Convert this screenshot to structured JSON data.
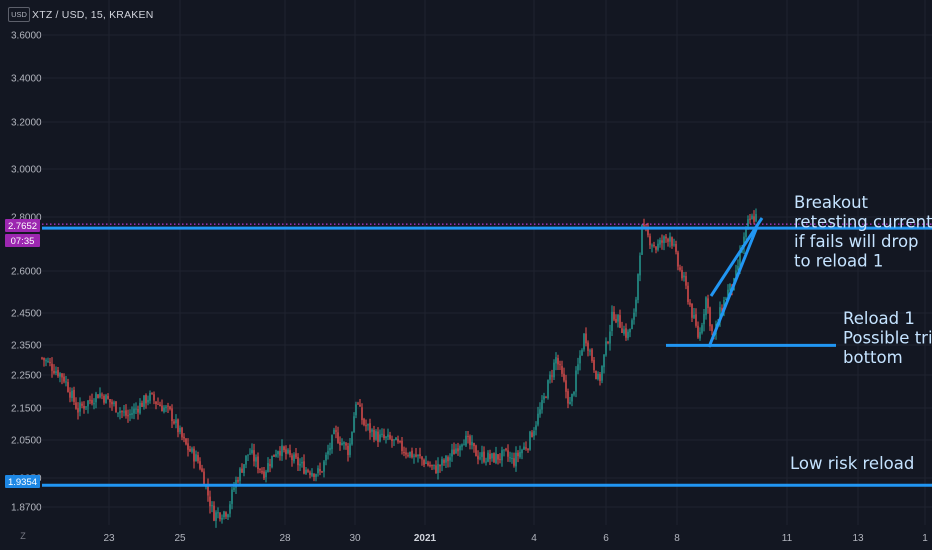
{
  "header": {
    "usd_label": "USD",
    "symbol_line": "XTZ / USD, 15, KRAKEN",
    "z_label": "Z"
  },
  "colors": {
    "background": "#131722",
    "grid": "#1f2330",
    "candle_up": "#26a69a",
    "candle_down": "#ef5350",
    "drawing_lines": "#2196f3",
    "price_badge": "#9c27b0",
    "level_badge": "#1e88e5",
    "annotation_text": "#c5e3ff"
  },
  "chart_data": {
    "type": "candlestick",
    "symbol": "XTZ / USD",
    "interval": "15",
    "exchange": "KRAKEN",
    "price_axis": {
      "ticks": [
        "1.8700",
        "1.9350",
        "2.0500",
        "2.1500",
        "2.2500",
        "2.3500",
        "2.4500",
        "2.6000",
        "2.8000",
        "3.0000",
        "3.2000",
        "3.4000",
        "3.6000"
      ],
      "scale": "log"
    },
    "time_axis": {
      "ticks": [
        {
          "label": "23",
          "bold": false
        },
        {
          "label": "25",
          "bold": false
        },
        {
          "label": "28",
          "bold": false
        },
        {
          "label": "30",
          "bold": false
        },
        {
          "label": "2021",
          "bold": true
        },
        {
          "label": "4",
          "bold": false
        },
        {
          "label": "6",
          "bold": false
        },
        {
          "label": "8",
          "bold": false
        },
        {
          "label": "11",
          "bold": false
        },
        {
          "label": "13",
          "bold": false
        },
        {
          "label": "1",
          "bold": false
        }
      ]
    },
    "current_price": {
      "value": "2.7652",
      "countdown": "07:35"
    },
    "levels": [
      {
        "name": "resistance",
        "value": 2.7652
      },
      {
        "name": "low-risk-reload",
        "value": 1.9354,
        "label": "1.9354"
      },
      {
        "name": "reload-1",
        "value": 2.34
      }
    ],
    "price_path": [
      [
        0,
        2.3
      ],
      [
        3,
        2.24
      ],
      [
        5,
        2.14
      ],
      [
        8,
        2.19
      ],
      [
        12,
        2.12
      ],
      [
        15,
        2.18
      ],
      [
        18,
        2.13
      ],
      [
        20,
        2.04
      ],
      [
        22,
        1.99
      ],
      [
        24,
        1.85
      ],
      [
        26,
        1.86
      ],
      [
        27,
        1.93
      ],
      [
        29,
        2.02
      ],
      [
        31,
        1.96
      ],
      [
        33,
        2.03
      ],
      [
        35,
        2.0
      ],
      [
        37,
        1.97
      ],
      [
        39,
        1.96
      ],
      [
        41,
        2.07
      ],
      [
        43,
        2.02
      ],
      [
        44,
        2.17
      ],
      [
        45,
        2.1
      ],
      [
        47,
        2.06
      ],
      [
        49,
        2.05
      ],
      [
        51,
        2.02
      ],
      [
        53,
        2.0
      ],
      [
        55,
        1.97
      ],
      [
        57,
        2.0
      ],
      [
        59,
        2.06
      ],
      [
        61,
        2.01
      ],
      [
        63,
        2.0
      ],
      [
        65,
        2.01
      ],
      [
        66,
        1.99
      ],
      [
        67,
        2.02
      ],
      [
        68,
        2.04
      ],
      [
        70,
        2.15
      ],
      [
        72,
        2.3
      ],
      [
        74,
        2.15
      ],
      [
        76,
        2.38
      ],
      [
        78,
        2.22
      ],
      [
        80,
        2.45
      ],
      [
        82,
        2.37
      ],
      [
        83,
        2.44
      ],
      [
        84,
        2.75
      ],
      [
        86,
        2.68
      ],
      [
        88,
        2.73
      ],
      [
        89,
        2.62
      ],
      [
        90,
        2.55
      ],
      [
        91,
        2.45
      ],
      [
        92,
        2.36
      ],
      [
        93,
        2.5
      ],
      [
        94,
        2.36
      ],
      [
        95,
        2.45
      ],
      [
        96,
        2.52
      ],
      [
        97,
        2.55
      ],
      [
        98,
        2.68
      ],
      [
        99,
        2.78
      ],
      [
        100,
        2.8
      ]
    ],
    "annotations": [
      {
        "name": "breakout",
        "lines": [
          "Breakout",
          "retesting currently",
          "if fails will drop",
          "to reload 1"
        ]
      },
      {
        "name": "reload-1",
        "lines": [
          "Reload 1",
          "Possible triple",
          "bottom"
        ]
      },
      {
        "name": "low-risk-reload",
        "lines": [
          "Low risk reload"
        ]
      }
    ]
  }
}
